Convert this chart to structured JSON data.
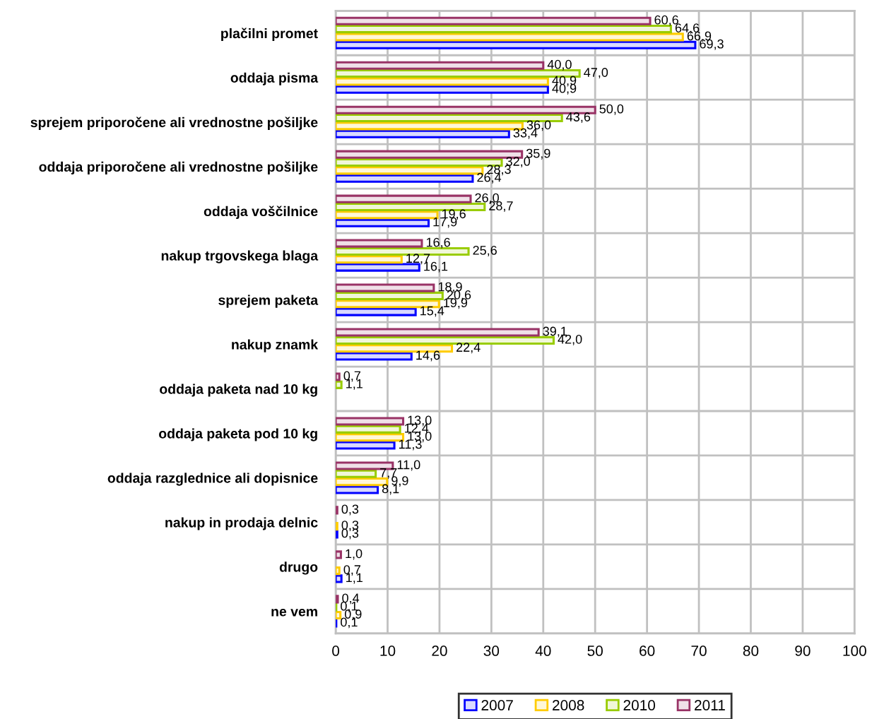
{
  "chart_data": {
    "type": "bar",
    "orientation": "horizontal",
    "categories": [
      "plačilni promet",
      "oddaja pisma",
      "sprejem priporočene ali vrednostne pošiljke",
      "oddaja priporočene ali vrednostne pošiljke",
      "oddaja voščilnice",
      "nakup trgovskega blaga",
      "sprejem paketa",
      "nakup znamk",
      "oddaja paketa nad 10 kg",
      "oddaja paketa pod 10 kg",
      "oddaja razglednice ali dopisnice",
      "nakup in prodaja delnic",
      "drugo",
      "ne vem"
    ],
    "series": [
      {
        "name": "2007",
        "color": "#0000ff",
        "values": [
          69.3,
          40.9,
          33.4,
          26.4,
          17.9,
          16.1,
          15.4,
          14.6,
          null,
          11.3,
          8.1,
          0.3,
          1.1,
          0.1
        ],
        "value_labels": [
          "69,3",
          "40,9",
          "33,4",
          "26,4",
          "17,9",
          "16,1",
          "15,4",
          "14,6",
          null,
          "11,3",
          "8,1",
          "0,3",
          "1,1",
          "0,1"
        ]
      },
      {
        "name": "2008",
        "color": "#ffcc00",
        "values": [
          66.9,
          40.9,
          36.0,
          28.3,
          19.6,
          12.7,
          19.9,
          22.4,
          null,
          13.0,
          9.9,
          0.3,
          0.7,
          0.9
        ],
        "value_labels": [
          "66,9",
          "40,9",
          "36,0",
          "28,3",
          "19,6",
          "12,7",
          "19,9",
          "22,4",
          null,
          "13,0",
          "9,9",
          "0,3",
          "0,7",
          "0,9"
        ]
      },
      {
        "name": "2010",
        "color": "#99cc00",
        "values": [
          64.6,
          47.0,
          43.6,
          32.0,
          28.7,
          25.6,
          20.6,
          42.0,
          1.1,
          12.4,
          7.7,
          null,
          null,
          0.1
        ],
        "value_labels": [
          "64,6",
          "47,0",
          "43,6",
          "32,0",
          "28,7",
          "25,6",
          "20,6",
          "42,0",
          "1,1",
          "12,4",
          "7,7",
          null,
          null,
          "0,1"
        ]
      },
      {
        "name": "2011",
        "color": "#993366",
        "values": [
          60.6,
          40.0,
          50.0,
          35.9,
          26.0,
          16.6,
          18.9,
          39.1,
          0.7,
          13.0,
          11.0,
          0.3,
          1.0,
          0.4
        ],
        "value_labels": [
          "60,6",
          "40,0",
          "50,0",
          "35,9",
          "26,0",
          "16,6",
          "18,9",
          "39,1",
          "0,7",
          "13,0",
          "11,0",
          "0,3",
          "1,0",
          "0,4"
        ]
      }
    ],
    "xlim": [
      0,
      100
    ],
    "xticks": [
      0,
      10,
      20,
      30,
      40,
      50,
      60,
      70,
      80,
      90,
      100
    ],
    "grid": true,
    "legend": "bottom"
  }
}
